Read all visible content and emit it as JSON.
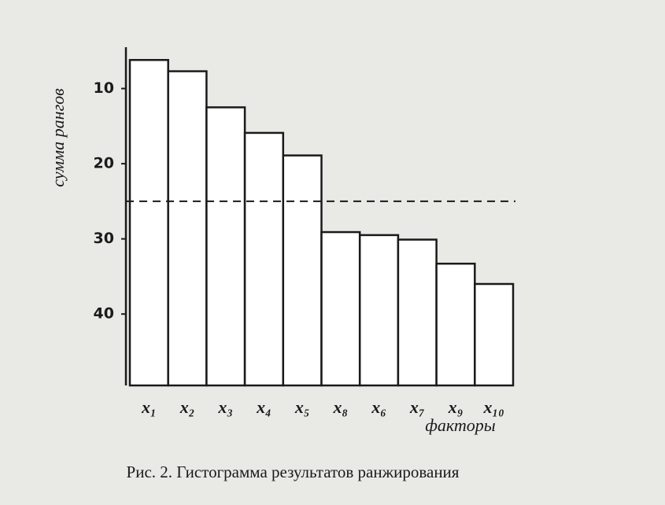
{
  "chart_data": {
    "type": "bar",
    "y_label": "сумма рангов",
    "x_label": "факторы",
    "caption": "Рис. 2. Гистограмма результатов ранжирования",
    "categories": [
      "x₁",
      "x₂",
      "x₃",
      "x₄",
      "x₅",
      "x₈",
      "x₆",
      "x₇",
      "x₉",
      "x₁₀"
    ],
    "values": [
      6.2,
      7.7,
      12.5,
      15.9,
      18.9,
      29.1,
      29.5,
      30.1,
      33.3,
      36.0
    ],
    "color": "#ffffff",
    "ylim": [
      4.5,
      49.5
    ],
    "y_inverted": true,
    "yticks": [
      10,
      20,
      30,
      40
    ],
    "reference_line": 25
  }
}
